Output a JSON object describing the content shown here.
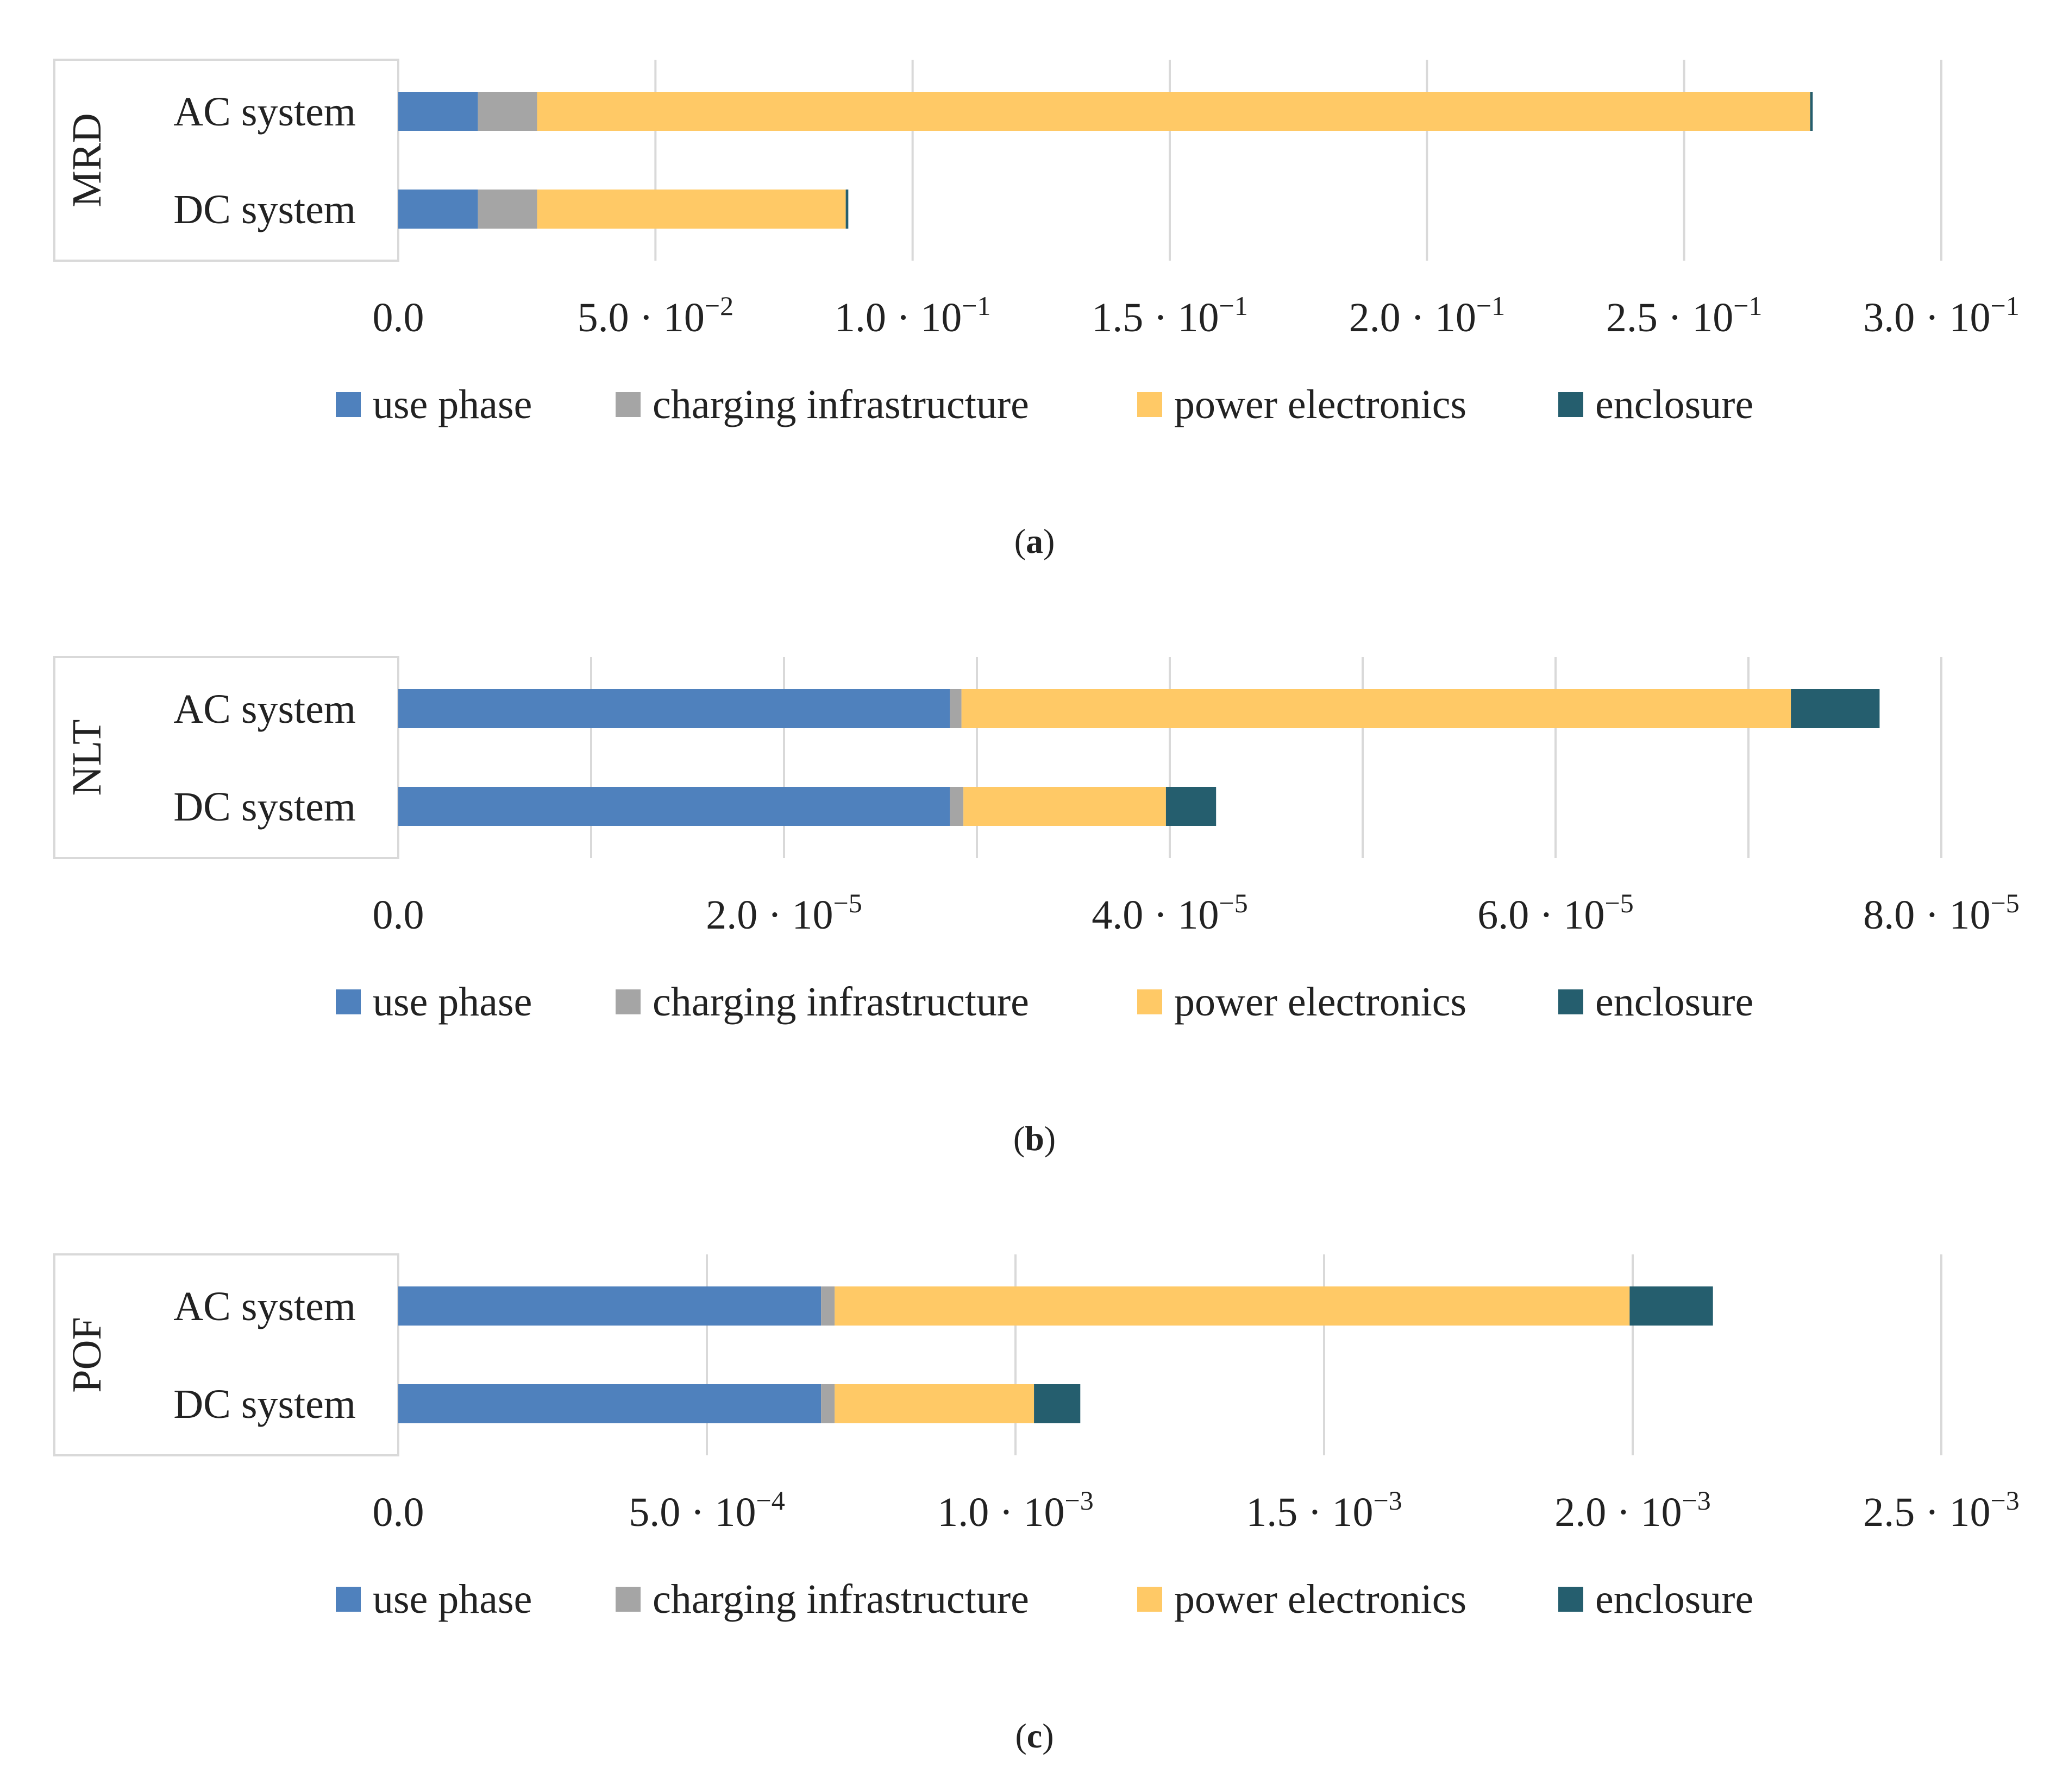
{
  "chart_data": [
    {
      "type": "bar",
      "orientation": "horizontal",
      "stacked": true,
      "group_label": "MRD",
      "categories": [
        "AC system",
        "DC system"
      ],
      "series": [
        {
          "name": "use phase",
          "color": "#4f81bd",
          "values": [
            0.0155,
            0.0155
          ]
        },
        {
          "name": "charging infrastructure",
          "color": "#a5a5a5",
          "values": [
            0.0115,
            0.0115
          ]
        },
        {
          "name": "power electronics",
          "color": "#ffc966",
          "values": [
            0.2475,
            0.06
          ]
        },
        {
          "name": "enclosure",
          "color": "#255e6e",
          "values": [
            0.0005,
            0.0005
          ]
        }
      ],
      "xlim": [
        0,
        0.3
      ],
      "xticks": [
        0,
        0.05,
        0.1,
        0.15,
        0.2,
        0.25,
        0.3
      ],
      "tick_labels": [
        {
          "mant": "0.0",
          "exp": ""
        },
        {
          "mant": "5.0",
          "exp": "−2"
        },
        {
          "mant": "1.0",
          "exp": "−1"
        },
        {
          "mant": "1.5",
          "exp": "−1"
        },
        {
          "mant": "2.0",
          "exp": "−1"
        },
        {
          "mant": "2.5",
          "exp": "−1"
        },
        {
          "mant": "3.0",
          "exp": "−1"
        }
      ],
      "grid": true,
      "legend_position": "bottom",
      "caption": "a"
    },
    {
      "type": "bar",
      "orientation": "horizontal",
      "stacked": true,
      "group_label": "NLT",
      "categories": [
        "AC system",
        "DC system"
      ],
      "series": [
        {
          "name": "use phase",
          "color": "#4f81bd",
          "values": [
            2.86e-05,
            2.86e-05
          ]
        },
        {
          "name": "charging infrastructure",
          "color": "#a5a5a5",
          "values": [
            6e-07,
            7e-07
          ]
        },
        {
          "name": "power electronics",
          "color": "#ffc966",
          "values": [
            4.3e-05,
            1.05e-05
          ]
        },
        {
          "name": "enclosure",
          "color": "#255e6e",
          "values": [
            4.6e-06,
            2.6e-06
          ]
        }
      ],
      "xlim": [
        0,
        8e-05
      ],
      "xticks": [
        0,
        2e-05,
        4e-05,
        6e-05,
        8e-05
      ],
      "minor_grid": [
        1e-05,
        3e-05,
        5e-05,
        7e-05
      ],
      "tick_labels": [
        {
          "mant": "0.0",
          "exp": ""
        },
        {
          "mant": "2.0",
          "exp": "−5"
        },
        {
          "mant": "4.0",
          "exp": "−5"
        },
        {
          "mant": "6.0",
          "exp": "−5"
        },
        {
          "mant": "8.0",
          "exp": "−5"
        }
      ],
      "grid": true,
      "legend_position": "bottom",
      "caption": "b"
    },
    {
      "type": "bar",
      "orientation": "horizontal",
      "stacked": true,
      "group_label": "POF",
      "categories": [
        "AC system",
        "DC system"
      ],
      "series": [
        {
          "name": "use phase",
          "color": "#4f81bd",
          "values": [
            0.000685,
            0.000685
          ]
        },
        {
          "name": "charging infrastructure",
          "color": "#a5a5a5",
          "values": [
            2.2e-05,
            2.2e-05
          ]
        },
        {
          "name": "power electronics",
          "color": "#ffc966",
          "values": [
            0.001288,
            0.000323
          ]
        },
        {
          "name": "enclosure",
          "color": "#255e6e",
          "values": [
            0.000135,
            7.5e-05
          ]
        }
      ],
      "xlim": [
        0,
        0.0025
      ],
      "xticks": [
        0,
        0.0005,
        0.001,
        0.0015,
        0.002,
        0.0025
      ],
      "tick_labels": [
        {
          "mant": "0.0",
          "exp": ""
        },
        {
          "mant": "5.0",
          "exp": "−4"
        },
        {
          "mant": "1.0",
          "exp": "−3"
        },
        {
          "mant": "1.5",
          "exp": "−3"
        },
        {
          "mant": "2.0",
          "exp": "−3"
        },
        {
          "mant": "2.5",
          "exp": "−3"
        }
      ],
      "grid": true,
      "legend_position": "bottom",
      "caption": "c"
    }
  ],
  "tick_base": "10",
  "tick_separator": "·"
}
